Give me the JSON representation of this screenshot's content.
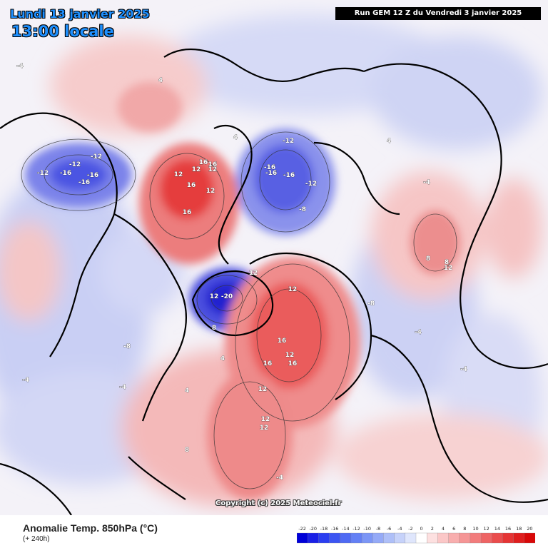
{
  "header": {
    "date": "Lundi 13 janvier 2025",
    "time": "13:00 locale",
    "run": "Run GEM 12 Z du Vendredi 3 janvier 2025"
  },
  "map": {
    "copyright": "Copyright (c) 2025 Meteociel.fr",
    "contour_labels": [
      {
        "t": "4"
      },
      {
        "t": "-4"
      },
      {
        "t": "4"
      },
      {
        "t": "-12"
      },
      {
        "t": "-16"
      },
      {
        "t": "-12"
      },
      {
        "t": "-16"
      },
      {
        "t": "-16"
      },
      {
        "t": "-12"
      },
      {
        "t": "16"
      },
      {
        "t": "16"
      },
      {
        "t": "12"
      },
      {
        "t": "12"
      },
      {
        "t": "16"
      },
      {
        "t": "12"
      },
      {
        "t": "16"
      },
      {
        "t": "12"
      },
      {
        "t": "-12"
      },
      {
        "t": "-16"
      },
      {
        "t": "-16"
      },
      {
        "t": "-16"
      },
      {
        "t": "-12"
      },
      {
        "t": "-8"
      },
      {
        "t": "-20"
      },
      {
        "t": "12"
      },
      {
        "t": "12"
      },
      {
        "t": "12"
      },
      {
        "t": "16"
      },
      {
        "t": "12"
      },
      {
        "t": "16"
      },
      {
        "t": "16"
      },
      {
        "t": "12"
      },
      {
        "t": "12"
      },
      {
        "t": "12"
      },
      {
        "t": "8"
      },
      {
        "t": "-8"
      },
      {
        "t": "-4"
      },
      {
        "t": "-4"
      },
      {
        "t": "4"
      },
      {
        "t": "8"
      },
      {
        "t": "4"
      },
      {
        "t": "-4"
      },
      {
        "t": "-8"
      },
      {
        "t": "-4"
      },
      {
        "t": "8"
      },
      {
        "t": "12"
      },
      {
        "t": "8"
      },
      {
        "t": "-4"
      },
      {
        "t": "4"
      },
      {
        "t": "-4"
      }
    ]
  },
  "footer": {
    "product": "Anomalie Temp. 850hPa (°C)",
    "lead": "(+ 240h)"
  },
  "legend": {
    "ticks": [
      "-22",
      "-20",
      "-18",
      "-16",
      "-14",
      "-12",
      "-10",
      "-8",
      "-6",
      "-4",
      "-2",
      "0",
      "2",
      "4",
      "6",
      "8",
      "10",
      "12",
      "14",
      "16",
      "18",
      "20"
    ],
    "colors": [
      "#0000d8",
      "#1a20e6",
      "#2b3ef0",
      "#3c55f2",
      "#4f6af3",
      "#6480f5",
      "#7c96f6",
      "#95aaf7",
      "#aebff8",
      "#c6d2fa",
      "#dfe6fc",
      "#ffffff",
      "#fde0e0",
      "#fbc7c7",
      "#f8aeae",
      "#f59595",
      "#f27c7c",
      "#ee6464",
      "#ea4c4c",
      "#e53434",
      "#df1e1e",
      "#d80808"
    ]
  },
  "colors": {
    "land_outline": "#000000",
    "title_blue": "#1e90ff"
  }
}
